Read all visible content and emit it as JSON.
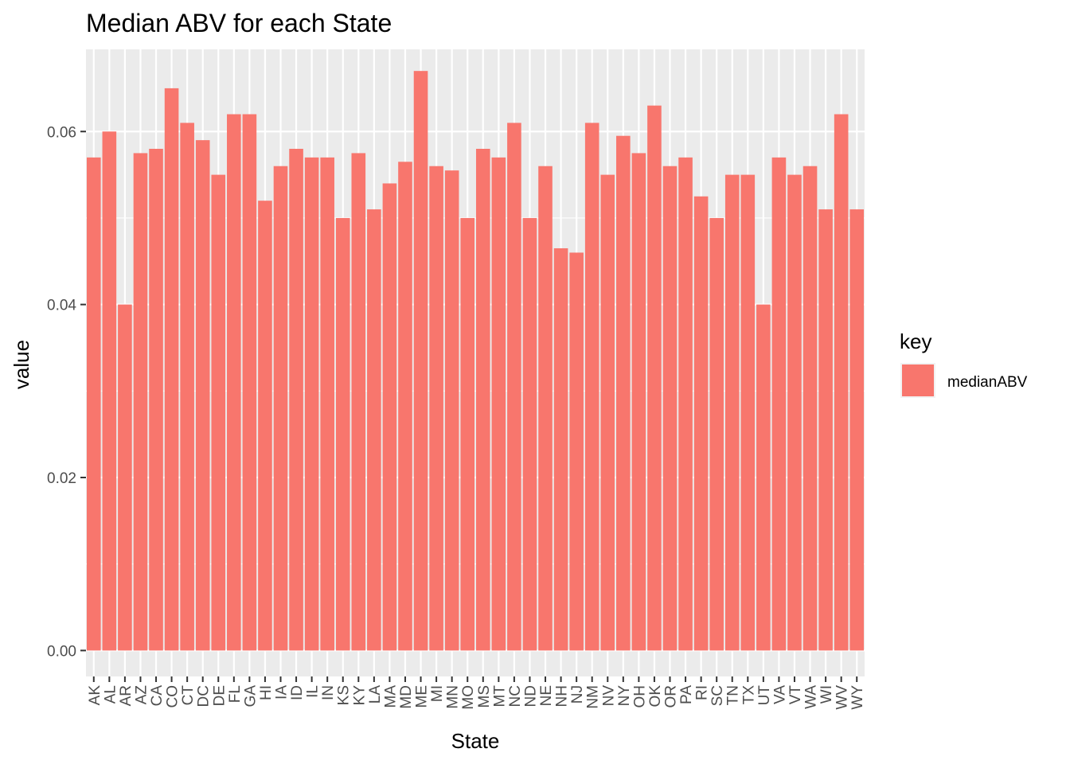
{
  "chart_data": {
    "type": "bar",
    "title": "Median ABV for each State",
    "xlabel": "State",
    "ylabel": "value",
    "ylim": [
      -0.003,
      0.0695
    ],
    "yticks": [
      0.0,
      0.02,
      0.04,
      0.06
    ],
    "ytick_labels": [
      "0.00",
      "0.02",
      "0.04",
      "0.06"
    ],
    "grid": true,
    "legend": {
      "title": "key",
      "position": "right"
    },
    "categories": [
      "AK",
      "AL",
      "AR",
      "AZ",
      "CA",
      "CO",
      "CT",
      "DC",
      "DE",
      "FL",
      "GA",
      "HI",
      "IA",
      "ID",
      "IL",
      "IN",
      "KS",
      "KY",
      "LA",
      "MA",
      "MD",
      "ME",
      "MI",
      "MN",
      "MO",
      "MS",
      "MT",
      "NC",
      "ND",
      "NE",
      "NH",
      "NJ",
      "NM",
      "NV",
      "NY",
      "OH",
      "OK",
      "OR",
      "PA",
      "RI",
      "SC",
      "TN",
      "TX",
      "UT",
      "VA",
      "VT",
      "WA",
      "WI",
      "WV",
      "WY"
    ],
    "series": [
      {
        "name": "medianABV",
        "color": "#F8766D",
        "values": [
          0.057,
          0.06,
          0.04,
          0.0575,
          0.058,
          0.065,
          0.061,
          0.059,
          0.055,
          0.062,
          0.062,
          0.052,
          0.056,
          0.058,
          0.057,
          0.057,
          0.05,
          0.0575,
          0.051,
          0.054,
          0.0565,
          0.067,
          0.056,
          0.0555,
          0.05,
          0.058,
          0.057,
          0.061,
          0.05,
          0.056,
          0.0465,
          0.046,
          0.061,
          0.055,
          0.0595,
          0.0575,
          0.063,
          0.056,
          0.057,
          0.0525,
          0.05,
          0.055,
          0.055,
          0.04,
          0.057,
          0.055,
          0.056,
          0.051,
          0.062,
          0.051
        ]
      }
    ]
  }
}
